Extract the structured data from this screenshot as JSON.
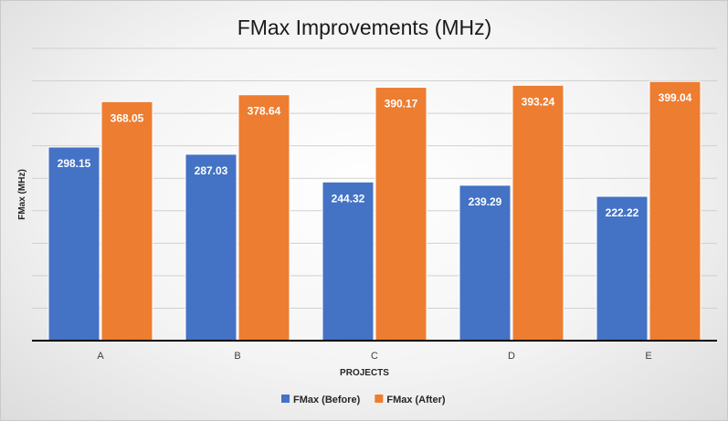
{
  "chart_data": {
    "type": "bar",
    "title": "FMax Improvements (MHz)",
    "xlabel": "PROJECTS",
    "ylabel": "FMax (MHz)",
    "categories": [
      "A",
      "B",
      "C",
      "D",
      "E"
    ],
    "series": [
      {
        "name": "FMax (Before)",
        "color": "#4472C4",
        "values": [
          298.15,
          287.03,
          244.32,
          239.29,
          222.22
        ]
      },
      {
        "name": "FMax (After)",
        "color": "#ED7D31",
        "values": [
          368.05,
          378.64,
          390.17,
          393.24,
          399.04
        ]
      }
    ],
    "ylim": [
      0,
      450
    ],
    "grid": true,
    "legend_position": "bottom",
    "gridline_color": "#d0d0d0",
    "baseline_color": "#000000"
  }
}
